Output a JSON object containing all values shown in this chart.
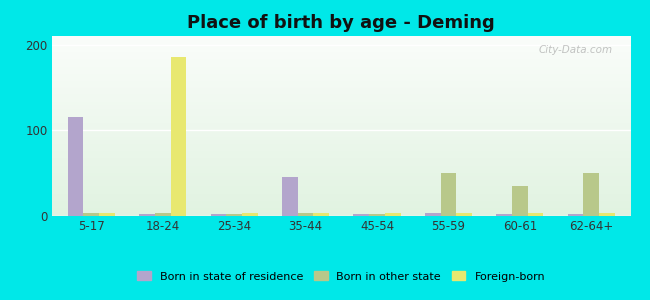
{
  "title": "Place of birth by age - Deming",
  "categories": [
    "5-17",
    "18-24",
    "25-34",
    "35-44",
    "45-54",
    "55-59",
    "60-61",
    "62-64+"
  ],
  "born_in_state": [
    115,
    2,
    2,
    45,
    2,
    3,
    2,
    2
  ],
  "born_other_state": [
    3,
    3,
    2,
    3,
    2,
    50,
    35,
    50
  ],
  "foreign_born": [
    3,
    185,
    3,
    3,
    3,
    3,
    3,
    4
  ],
  "bar_width": 0.22,
  "color_state": "#b3a5cc",
  "color_other": "#b8c88a",
  "color_foreign": "#e8e870",
  "ylim": [
    0,
    210
  ],
  "yticks": [
    0,
    100,
    200
  ],
  "bg_outer": "#00e8e8",
  "title_fontsize": 13,
  "legend_labels": [
    "Born in state of residence",
    "Born in other state",
    "Foreign-born"
  ]
}
